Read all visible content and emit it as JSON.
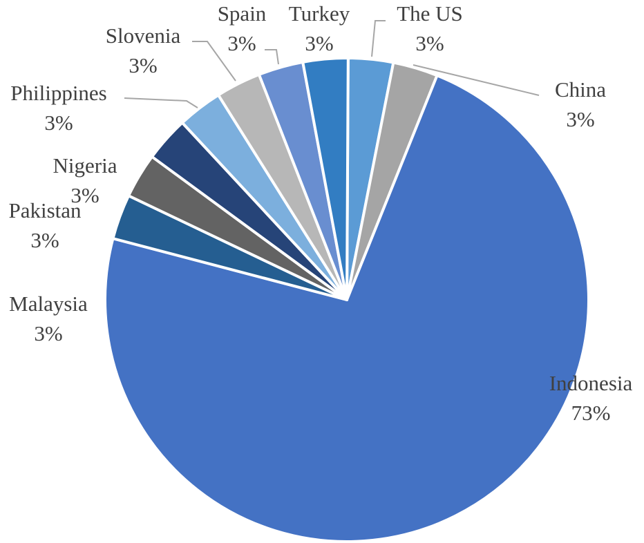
{
  "chart_data": {
    "type": "pie",
    "slices": [
      {
        "label": "The US",
        "value": 3,
        "display": "3%",
        "color": "#5b9bd5"
      },
      {
        "label": "China",
        "value": 3,
        "display": "3%",
        "color": "#a5a5a5"
      },
      {
        "label": "Indonesia",
        "value": 73,
        "display": "73%",
        "color": "#4472c4"
      },
      {
        "label": "Malaysia",
        "value": 3,
        "display": "3%",
        "color": "#255e91"
      },
      {
        "label": "Pakistan",
        "value": 3,
        "display": "3%",
        "color": "#636363"
      },
      {
        "label": "Nigeria",
        "value": 3,
        "display": "3%",
        "color": "#264478"
      },
      {
        "label": "Philippines",
        "value": 3,
        "display": "3%",
        "color": "#7cafdd"
      },
      {
        "label": "Slovenia",
        "value": 3,
        "display": "3%",
        "color": "#b7b7b7"
      },
      {
        "label": "Spain",
        "value": 3,
        "display": "3%",
        "color": "#698ed0"
      },
      {
        "label": "Turkey",
        "value": 3,
        "display": "3%",
        "color": "#327dc2"
      }
    ],
    "legend": "none",
    "data_labels": "category and percentage"
  }
}
